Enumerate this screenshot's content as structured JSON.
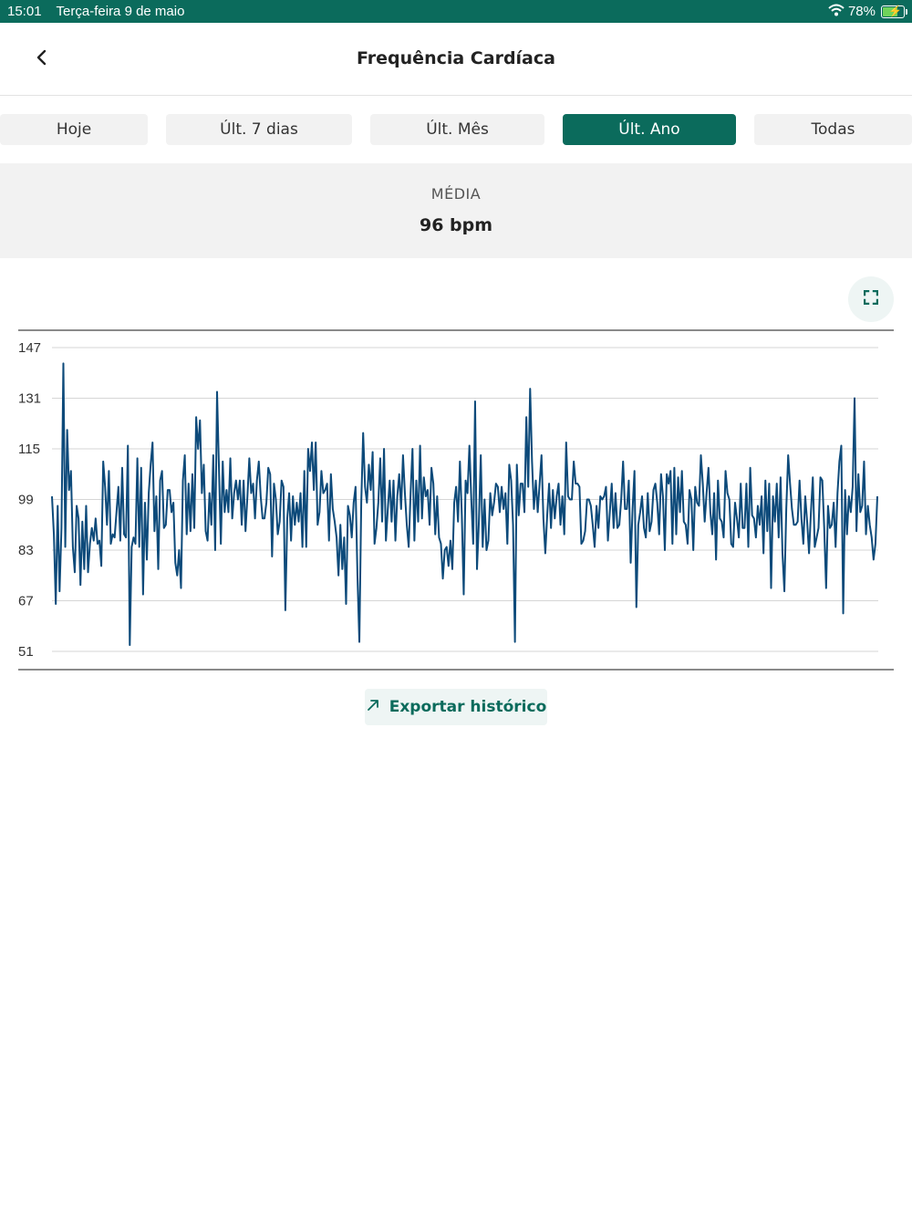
{
  "status_bar": {
    "time": "15:01",
    "date": "Terça-feira 9 de maio",
    "battery": "78%",
    "battery_level": 0.78
  },
  "header": {
    "title": "Frequência Cardíaca",
    "back_icon": "chevron-left-icon"
  },
  "tabs": [
    {
      "label": "Hoje",
      "active": false
    },
    {
      "label": "Últ. 7 dias",
      "active": false
    },
    {
      "label": "Últ. Mês",
      "active": false
    },
    {
      "label": "Últ. Ano",
      "active": true
    },
    {
      "label": "Todas",
      "active": false
    }
  ],
  "summary": {
    "label": "MÉDIA",
    "value": "96 bpm"
  },
  "expand_icon": "expand-icon",
  "export": {
    "label": "Exportar histórico",
    "icon": "arrow-up-right-icon"
  },
  "colors": {
    "accent": "#0b6b5c",
    "line": "#0d4a7a",
    "tab_inactive": "#f2f2f2",
    "panel": "#f2f2f2"
  },
  "chart_data": {
    "type": "line",
    "ylim": [
      51,
      147
    ],
    "yticks": [
      147,
      131,
      115,
      99,
      83,
      67,
      51
    ],
    "grid": true,
    "series": [
      {
        "values": [
          100,
          88,
          66,
          97,
          70,
          90,
          142,
          84,
          121,
          102,
          108,
          84,
          76,
          97,
          93,
          72,
          92,
          77,
          97,
          76,
          85,
          90,
          86,
          93,
          85,
          86,
          78,
          111,
          103,
          91,
          108,
          85,
          88,
          87,
          95,
          103,
          86,
          109,
          88,
          87,
          116,
          53,
          84,
          87,
          85,
          112,
          84,
          109,
          69,
          98,
          80,
          101,
          110,
          117,
          89,
          100,
          77,
          105,
          108,
          90,
          91,
          102,
          102,
          95,
          98,
          79,
          75,
          83,
          71,
          105,
          113,
          88,
          104,
          89,
          107,
          90,
          125,
          115,
          124,
          101,
          110,
          89,
          86,
          101,
          91,
          113,
          83,
          133,
          109,
          85,
          111,
          95,
          102,
          95,
          112,
          93,
          101,
          105,
          99,
          105,
          91,
          105,
          89,
          100,
          112,
          101,
          104,
          93,
          105,
          111,
          100,
          93,
          93,
          98,
          109,
          107,
          81,
          104,
          99,
          88,
          92,
          105,
          103,
          64,
          93,
          101,
          86,
          100,
          91,
          98,
          92,
          101,
          84,
          108,
          84,
          115,
          108,
          117,
          102,
          117,
          91,
          95,
          108,
          101,
          102,
          104,
          86,
          107,
          96,
          92,
          87,
          75,
          91,
          77,
          87,
          66,
          97,
          94,
          87,
          98,
          103,
          75,
          54,
          98,
          120,
          103,
          98,
          110,
          102,
          114,
          85,
          90,
          98,
          112,
          92,
          115,
          86,
          96,
          105,
          92,
          105,
          86,
          100,
          107,
          96,
          113,
          101,
          91,
          84,
          101,
          115,
          86,
          105,
          92,
          116,
          93,
          106,
          100,
          102,
          91,
          109,
          104,
          88,
          100,
          87,
          85,
          74,
          83,
          84,
          78,
          86,
          77,
          98,
          103,
          92,
          111,
          94,
          69,
          105,
          101,
          116,
          99,
          85,
          130,
          77,
          92,
          113,
          84,
          99,
          83,
          86,
          101,
          94,
          98,
          104,
          103,
          95,
          103,
          96,
          101,
          85,
          110,
          105,
          91,
          54,
          110,
          94,
          104,
          104,
          95,
          125,
          103,
          134,
          111,
          96,
          105,
          95,
          104,
          113,
          93,
          82,
          94,
          104,
          90,
          102,
          93,
          100,
          104,
          91,
          100,
          88,
          117,
          100,
          99,
          99,
          111,
          104,
          104,
          103,
          85,
          86,
          89,
          99,
          99,
          97,
          91,
          84,
          97,
          90,
          100,
          99,
          100,
          103,
          86,
          95,
          104,
          90,
          101,
          90,
          91,
          99,
          111,
          96,
          96,
          105,
          79,
          96,
          108,
          65,
          91,
          95,
          100,
          90,
          87,
          101,
          89,
          92,
          102,
          104,
          98,
          88,
          107,
          100,
          83,
          107,
          104,
          108,
          85,
          109,
          88,
          106,
          95,
          108,
          92,
          91,
          85,
          102,
          99,
          83,
          103,
          98,
          97,
          113,
          104,
          92,
          101,
          109,
          95,
          88,
          101,
          80,
          105,
          93,
          92,
          87,
          108,
          101,
          99,
          85,
          84,
          98,
          93,
          87,
          104,
          90,
          90,
          104,
          84,
          109,
          94,
          93,
          87,
          97,
          91,
          100,
          82,
          105,
          89,
          104,
          71,
          100,
          92,
          104,
          87,
          106,
          82,
          70,
          96,
          113,
          104,
          96,
          91,
          91,
          92,
          105,
          93,
          85,
          100,
          92,
          82,
          95,
          106,
          84,
          87,
          90,
          106,
          105,
          90,
          71,
          97,
          90,
          91,
          98,
          84,
          101,
          111,
          116,
          63,
          102,
          88,
          100,
          95,
          103,
          131,
          89,
          107,
          95,
          97,
          111,
          88,
          97,
          91,
          87,
          80,
          85,
          100
        ]
      }
    ]
  }
}
